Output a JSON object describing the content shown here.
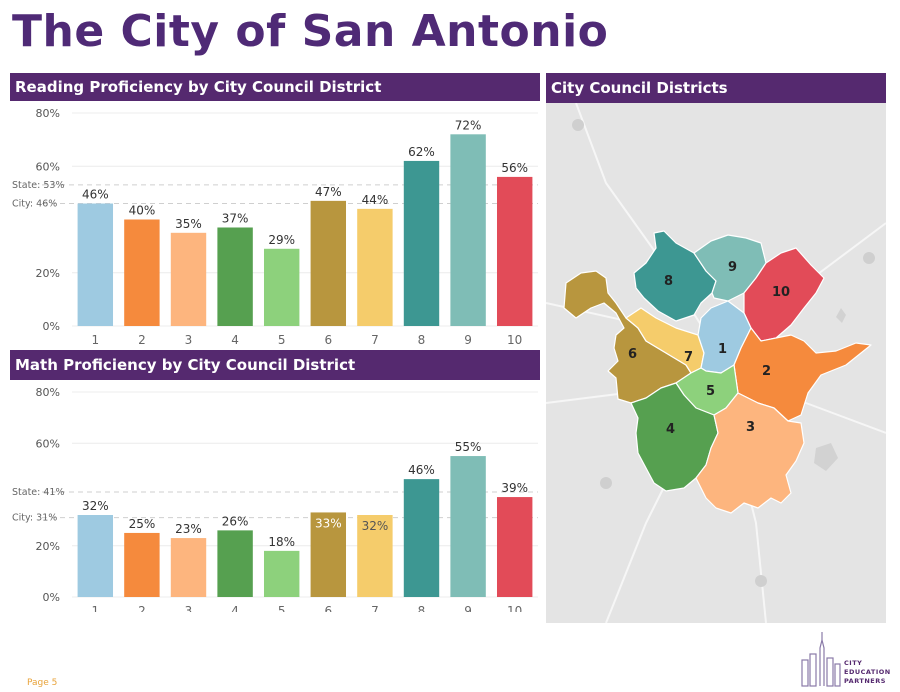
{
  "page": {
    "title": "The City of San Antonio",
    "page_label": "Page 5"
  },
  "chart_data": [
    {
      "type": "bar",
      "title": "Reading Proficiency by City Council District",
      "categories": [
        "1",
        "2",
        "3",
        "4",
        "5",
        "6",
        "7",
        "8",
        "9",
        "10"
      ],
      "values": [
        46,
        40,
        35,
        37,
        29,
        47,
        44,
        62,
        72,
        56
      ],
      "data_labels": [
        "46%",
        "40%",
        "35%",
        "37%",
        "29%",
        "47%",
        "44%",
        "62%",
        "72%",
        "56%"
      ],
      "colors": [
        "#9ecae1",
        "#f58a3d",
        "#fdb57e",
        "#56a050",
        "#8dd17c",
        "#b8963e",
        "#f5cc6b",
        "#3d9792",
        "#7fbdb6",
        "#e24b58"
      ],
      "ylim": [
        0,
        80
      ],
      "yticks": [
        0,
        20,
        60,
        80
      ],
      "ytick_labels": [
        "0%",
        "20%",
        "60%",
        "80%"
      ],
      "reference_lines": [
        {
          "label": "State: 53%",
          "value": 53
        },
        {
          "label": "City: 46%",
          "value": 46
        }
      ],
      "label_colors": [
        "#333333",
        "#333333",
        "#333333",
        "#333333",
        "#333333",
        "#333333",
        "#333333",
        "#333333",
        "#333333",
        "#333333"
      ],
      "grid": true
    },
    {
      "type": "bar",
      "title": "Math Proficiency by City Council District",
      "categories": [
        "1",
        "2",
        "3",
        "4",
        "5",
        "6",
        "7",
        "8",
        "9",
        "10"
      ],
      "values": [
        32,
        25,
        23,
        26,
        18,
        33,
        32,
        46,
        55,
        39
      ],
      "data_labels": [
        "32%",
        "25%",
        "23%",
        "26%",
        "18%",
        "33%",
        "32%",
        "46%",
        "55%",
        "39%"
      ],
      "colors": [
        "#9ecae1",
        "#f58a3d",
        "#fdb57e",
        "#56a050",
        "#8dd17c",
        "#b8963e",
        "#f5cc6b",
        "#3d9792",
        "#7fbdb6",
        "#e24b58"
      ],
      "ylim": [
        0,
        80
      ],
      "yticks": [
        0,
        20,
        60,
        80
      ],
      "ytick_labels": [
        "0%",
        "20%",
        "60%",
        "80%"
      ],
      "reference_lines": [
        {
          "label": "State: 41%",
          "value": 41
        },
        {
          "label": "City: 31%",
          "value": 31
        }
      ],
      "label_colors": [
        "#333333",
        "#333333",
        "#333333",
        "#333333",
        "#333333",
        "#ffffff",
        "#555555",
        "#333333",
        "#333333",
        "#333333"
      ],
      "grid": true
    }
  ],
  "map": {
    "title": "City Council Districts",
    "districts": [
      {
        "label": "1",
        "color": "#9ecae1"
      },
      {
        "label": "2",
        "color": "#f58a3d"
      },
      {
        "label": "3",
        "color": "#fdb57e"
      },
      {
        "label": "4",
        "color": "#56a050"
      },
      {
        "label": "5",
        "color": "#8dd17c"
      },
      {
        "label": "6",
        "color": "#b8963e"
      },
      {
        "label": "7",
        "color": "#f5cc6b"
      },
      {
        "label": "8",
        "color": "#3d9792"
      },
      {
        "label": "9",
        "color": "#7fbdb6"
      },
      {
        "label": "10",
        "color": "#e24b58"
      }
    ]
  },
  "logo": {
    "line1": "CITY",
    "line2": "EDUCATION",
    "line3": "PARTNERS"
  }
}
